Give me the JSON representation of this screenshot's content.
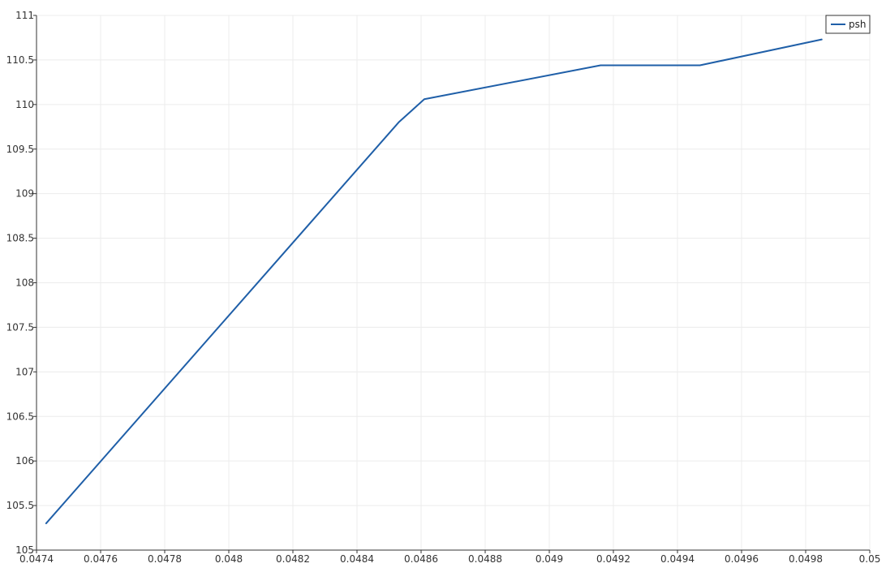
{
  "chart_data": {
    "type": "line",
    "title": "",
    "xlabel": "",
    "ylabel": "",
    "xlim": [
      0.0474,
      0.05
    ],
    "ylim": [
      105,
      111
    ],
    "x_ticks": [
      "0.0474",
      "0.0476",
      "0.0478",
      "0.048",
      "0.0482",
      "0.0484",
      "0.0486",
      "0.0488",
      "0.049",
      "0.0492",
      "0.0494",
      "0.0496",
      "0.0498",
      "0.05"
    ],
    "x_tick_values": [
      0.0474,
      0.0476,
      0.0478,
      0.048,
      0.0482,
      0.0484,
      0.0486,
      0.0488,
      0.049,
      0.0492,
      0.0494,
      0.0496,
      0.0498,
      0.05
    ],
    "y_ticks": [
      "105",
      "105.5",
      "106",
      "106.5",
      "107",
      "107.5",
      "108",
      "108.5",
      "109",
      "109.5",
      "110",
      "110.5",
      "111"
    ],
    "y_tick_values": [
      105,
      105.5,
      106,
      106.5,
      107,
      107.5,
      108,
      108.5,
      109,
      109.5,
      110,
      110.5,
      111
    ],
    "grid": true,
    "legend": {
      "position": "top-right"
    },
    "series": [
      {
        "name": "psh",
        "color": "#1f5fa8",
        "x": [
          0.04743,
          0.04853,
          0.04861,
          0.04916,
          0.04947,
          0.04985
        ],
        "y": [
          105.3,
          109.8,
          110.06,
          110.44,
          110.44,
          110.73
        ]
      }
    ]
  }
}
